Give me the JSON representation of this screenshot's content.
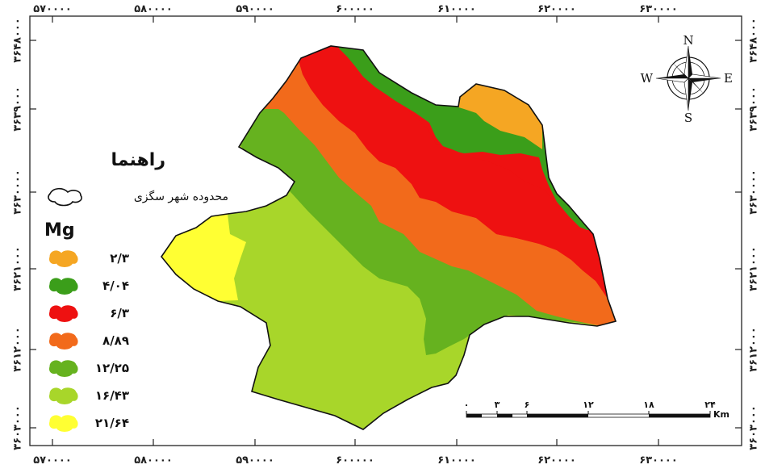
{
  "axes": {
    "x_labels": [
      "۵۷۰۰۰۰",
      "۵۸۰۰۰۰",
      "۵۹۰۰۰۰",
      "۶۰۰۰۰۰",
      "۶۱۰۰۰۰",
      "۶۲۰۰۰۰",
      "۶۳۰۰۰۰"
    ],
    "y_labels": [
      "۳۶۴۸۰۰۰",
      "۳۶۳۹۰۰۰",
      "۳۶۳۰۰۰۰",
      "۳۶۲۱۰۰۰",
      "۳۶۱۲۰۰۰",
      "۳۶۰۳۰۰۰"
    ]
  },
  "legend": {
    "title": "راهنما",
    "boundary_label": "محدوده شهر سگزی",
    "variable": "Mg",
    "classes": [
      {
        "label": "۲/۳",
        "color": "#f5a623"
      },
      {
        "label": "۴/۰۴",
        "color": "#3b9e1a"
      },
      {
        "label": "۶/۳",
        "color": "#ee1111"
      },
      {
        "label": "۸/۸۹",
        "color": "#f26a1b"
      },
      {
        "label": "۱۲/۲۵",
        "color": "#66b21f"
      },
      {
        "label": "۱۶/۴۳",
        "color": "#a8d62a"
      },
      {
        "label": "۲۱/۶۴",
        "color": "#ffff33"
      }
    ]
  },
  "compass": {
    "n": "N",
    "s": "S",
    "e": "E",
    "w": "W"
  },
  "scale_bar": {
    "ticks": [
      "۰",
      "۳",
      "۶",
      "۱۲",
      "۱۸",
      "۲۴"
    ],
    "unit": "Km"
  }
}
